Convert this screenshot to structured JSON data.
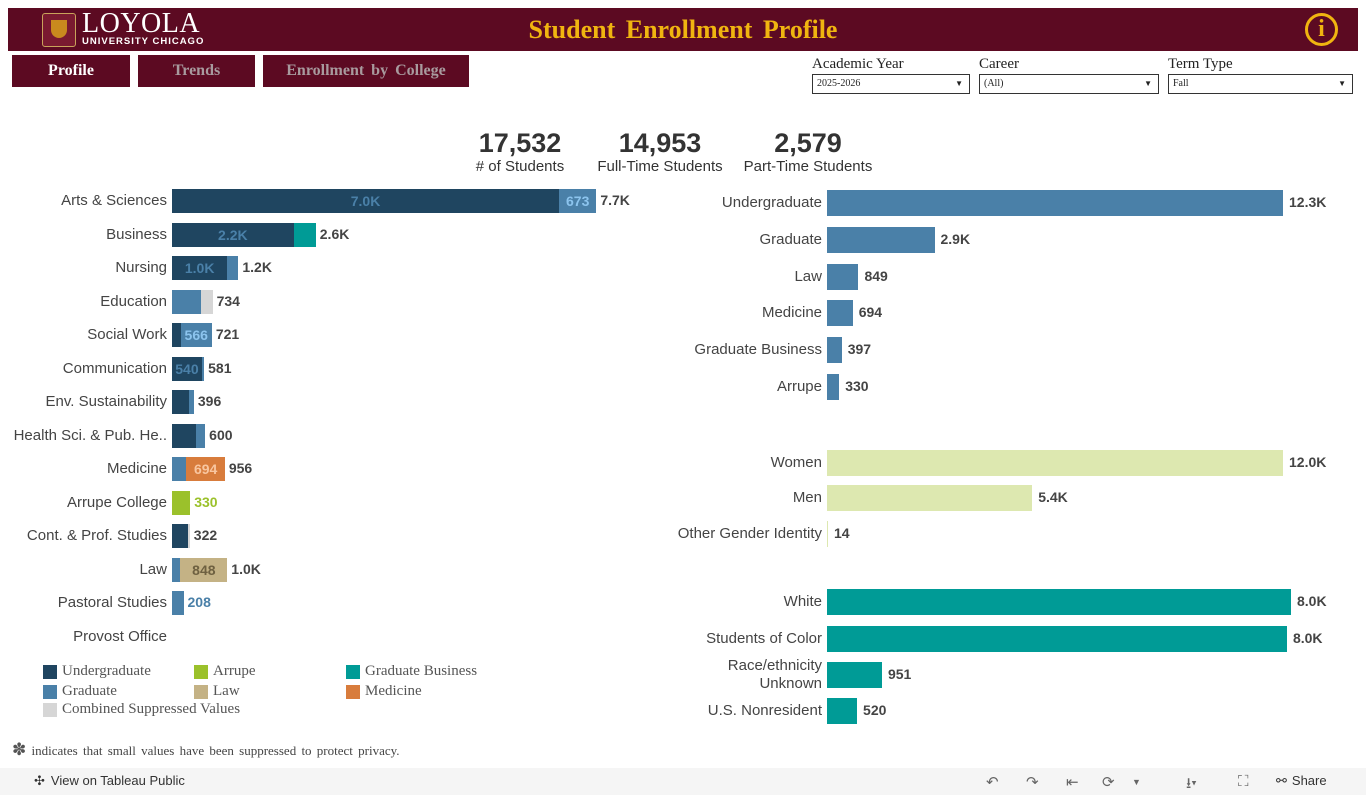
{
  "header": {
    "logo_main": "LOYOLA",
    "logo_sub": "UNIVERSITY CHICAGO",
    "title": "Student Enrollment Profile",
    "info_icon": "info-circle-icon"
  },
  "tabs": [
    {
      "label": "Profile",
      "active": true
    },
    {
      "label": "Trends",
      "active": false
    },
    {
      "label": "Enrollment by College",
      "active": false
    }
  ],
  "filters": [
    {
      "label": "Academic Year",
      "value": "2025-2026"
    },
    {
      "label": "Career",
      "value": "(All)"
    },
    {
      "label": "Term Type",
      "value": "Fall"
    }
  ],
  "kpis": [
    {
      "value": "17,532",
      "label": "# of Students"
    },
    {
      "value": "14,953",
      "label": "Full-Time Students"
    },
    {
      "value": "2,579",
      "label": "Part-Time Students"
    }
  ],
  "colors": {
    "Undergraduate": "#1f4560",
    "Graduate": "#4a80a8",
    "Graduate Business": "#009b96",
    "Medicine": "#d87c3c",
    "Arrupe": "#9bc12b",
    "Law": "#c4b285",
    "Combined Suppressed Values": "#d6d6d6",
    "brand": "#5c0a22",
    "accent": "#f0b510"
  },
  "chart_data": [
    {
      "type": "bar",
      "orientation": "horizontal",
      "stacked": true,
      "categories": [
        "Arts & Sciences",
        "Business",
        "Nursing",
        "Education",
        "Social Work",
        "Communication",
        "Env. Sustainability",
        "Health Sci. & Pub. He..",
        "Medicine",
        "Arrupe College",
        "Cont. & Prof. Studies",
        "Law",
        "Pastoral Studies",
        "Provost Office"
      ],
      "rows": [
        {
          "total": "7.7K",
          "segments": [
            {
              "s": "Undergraduate",
              "v": 7000,
              "label": "7.0K"
            },
            {
              "s": "Graduate",
              "v": 673,
              "label": "673"
            }
          ]
        },
        {
          "total": "2.6K",
          "segments": [
            {
              "s": "Undergraduate",
              "v": 2200,
              "label": "2.2K"
            },
            {
              "s": "Graduate Business",
              "v": 400
            }
          ]
        },
        {
          "total": "1.2K",
          "segments": [
            {
              "s": "Undergraduate",
              "v": 1000,
              "label": "1.0K"
            },
            {
              "s": "Graduate",
              "v": 200
            }
          ]
        },
        {
          "total": "734",
          "segments": [
            {
              "s": "Graduate",
              "v": 525
            },
            {
              "s": "Combined Suppressed Values",
              "v": 209
            }
          ]
        },
        {
          "total": "721",
          "segments": [
            {
              "s": "Undergraduate",
              "v": 155
            },
            {
              "s": "Graduate",
              "v": 566,
              "label": "566"
            }
          ]
        },
        {
          "total": "581",
          "segments": [
            {
              "s": "Undergraduate",
              "v": 540,
              "label": "540"
            },
            {
              "s": "Graduate",
              "v": 41
            }
          ]
        },
        {
          "total": "396",
          "segments": [
            {
              "s": "Undergraduate",
              "v": 310
            },
            {
              "s": "Graduate",
              "v": 86
            }
          ]
        },
        {
          "total": "600",
          "segments": [
            {
              "s": "Undergraduate",
              "v": 430
            },
            {
              "s": "Graduate",
              "v": 170
            }
          ]
        },
        {
          "total": "956",
          "segments": [
            {
              "s": "Graduate",
              "v": 262
            },
            {
              "s": "Medicine",
              "v": 694,
              "label": "694"
            }
          ]
        },
        {
          "total": "330",
          "total_color": "#9bc12b",
          "segments": [
            {
              "s": "Arrupe",
              "v": 330
            }
          ]
        },
        {
          "total": "322",
          "segments": [
            {
              "s": "Undergraduate",
              "v": 290
            },
            {
              "s": "Combined Suppressed Values",
              "v": 32
            }
          ]
        },
        {
          "total": "1.0K",
          "segments": [
            {
              "s": "Graduate",
              "v": 152
            },
            {
              "s": "Law",
              "v": 848,
              "label": "848"
            }
          ]
        },
        {
          "total": "208",
          "total_color": "#4a80a8",
          "segments": [
            {
              "s": "Graduate",
              "v": 208
            }
          ]
        },
        {
          "total": "",
          "segments": []
        }
      ],
      "legend": [
        "Undergraduate",
        "Arrupe",
        "Graduate Business",
        "Graduate",
        "Law",
        "Medicine",
        "Combined Suppressed Values"
      ]
    },
    {
      "type": "bar",
      "orientation": "horizontal",
      "color": "#4a80a8",
      "categories": [
        "Undergraduate",
        "Graduate",
        "Law",
        "Medicine",
        "Graduate Business",
        "Arrupe"
      ],
      "values": [
        12300,
        2900,
        849,
        694,
        397,
        330
      ],
      "labels": [
        "12.3K",
        "2.9K",
        "849",
        "694",
        "397",
        "330"
      ]
    },
    {
      "type": "bar",
      "orientation": "horizontal",
      "color": "#dde8b0",
      "categories": [
        "Women",
        "Men",
        "Other Gender Identity"
      ],
      "values": [
        12000,
        5400,
        14
      ],
      "labels": [
        "12.0K",
        "5.4K",
        "14"
      ]
    },
    {
      "type": "bar",
      "orientation": "horizontal",
      "color": "#009b96",
      "categories": [
        "White",
        "Students of Color",
        "Race/ethnicity Unknown",
        "U.S. Nonresident"
      ],
      "values": [
        8030,
        7960,
        951,
        520
      ],
      "labels": [
        "8.0K",
        "8.0K",
        "951",
        "520"
      ]
    }
  ],
  "note": {
    "icon": "asterisk-flower-icon",
    "text": "indicates that small values have been suppressed to protect privacy."
  },
  "footer": {
    "view_label": "View on Tableau Public",
    "share_label": "Share"
  }
}
